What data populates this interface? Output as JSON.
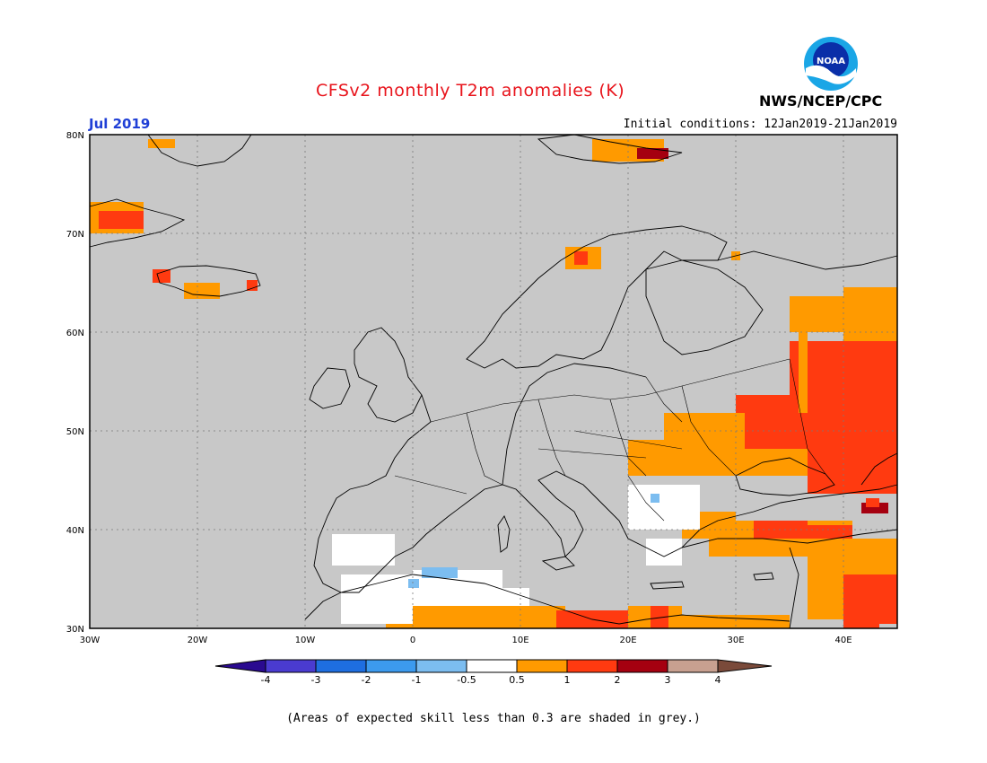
{
  "header": {
    "title": "CFSv2 monthly T2m anomalies (K)",
    "month": "Jul 2019",
    "initial_conditions": "Initial conditions: 12Jan2019-21Jan2019",
    "agency": "NWS/NCEP/CPC",
    "logo_text": "NOAA"
  },
  "map": {
    "lat_labels": [
      "30N",
      "40N",
      "50N",
      "60N",
      "70N",
      "80N"
    ],
    "lon_labels": [
      "30W",
      "20W",
      "10W",
      "0",
      "10E",
      "20E",
      "30E",
      "40E"
    ],
    "background": "#c8c8c8"
  },
  "colorbar": {
    "bins": [
      {
        "color": "#2a0a90"
      },
      {
        "color": "#4a3bd0"
      },
      {
        "color": "#1e6ee0"
      },
      {
        "color": "#3c9aee"
      },
      {
        "color": "#7cbdf0"
      },
      {
        "color": "#ffffff"
      },
      {
        "color": "#ff9a00"
      },
      {
        "color": "#ff3a10"
      },
      {
        "color": "#a50010"
      },
      {
        "color": "#c8a090"
      },
      {
        "color": "#7a4a3a"
      }
    ],
    "tick_labels": [
      "-4",
      "-3",
      "-2",
      "-1",
      "-0.5",
      "0.5",
      "1",
      "2",
      "3",
      "4"
    ]
  },
  "footnote": "(Areas of expected skill less than 0.3 are shaded in grey.)"
}
